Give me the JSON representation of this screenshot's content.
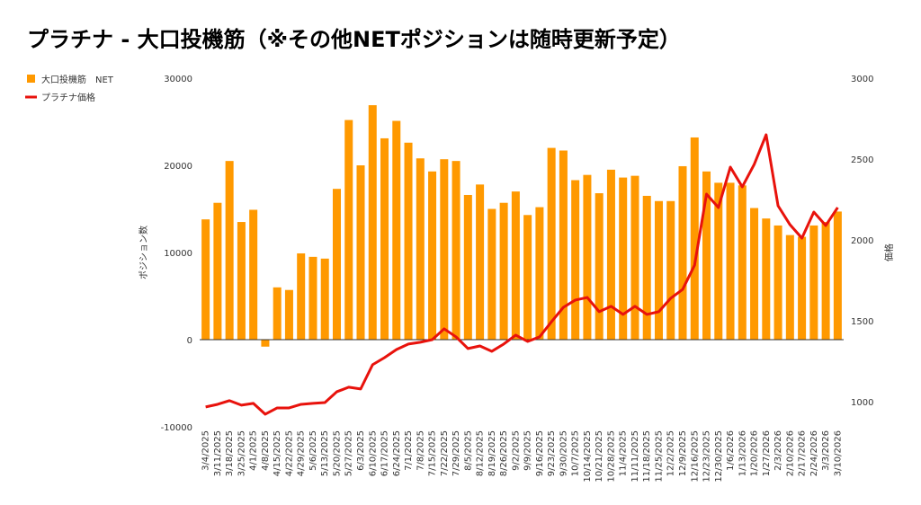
{
  "chart_data": {
    "type": "bar-line",
    "title": "プラチナ - 大口投機筋（※その他NETポジションは随時更新予定）",
    "y_label": "ポジション数",
    "y2_label": "価格",
    "categories": [
      "3/4/2025",
      "3/11/2025",
      "3/18/2025",
      "3/25/2025",
      "4/1/2025",
      "4/8/2025",
      "4/15/2025",
      "4/22/2025",
      "4/29/2025",
      "5/6/2025",
      "5/13/2025",
      "5/20/2025",
      "5/27/2025",
      "6/3/2025",
      "6/10/2025",
      "6/17/2025",
      "6/24/2025",
      "7/1/2025",
      "7/8/2025",
      "7/15/2025",
      "7/22/2025",
      "7/29/2025",
      "8/5/2025",
      "8/12/2025",
      "8/19/2025",
      "8/26/2025",
      "9/2/2025",
      "9/9/2025",
      "9/16/2025",
      "9/23/2025",
      "9/30/2025",
      "10/7/2025",
      "10/14/2025",
      "10/21/2025",
      "10/28/2025",
      "11/4/2025",
      "11/11/2025",
      "11/18/2025",
      "11/25/2025",
      "12/2/2025",
      "12/9/2025",
      "12/16/2025",
      "12/23/2025",
      "12/30/2025",
      "1/6/2026",
      "1/13/2026",
      "1/20/2026",
      "1/27/2026",
      "2/3/2026",
      "2/10/2026",
      "2/17/2026",
      "2/24/2026",
      "3/3/2026",
      "3/10/2026"
    ],
    "series": [
      {
        "name": "大口投機筋　NET",
        "type": "bar",
        "color": "#ff9900",
        "axis": "y",
        "values": [
          13800,
          15700,
          20500,
          13500,
          14900,
          -800,
          6000,
          5700,
          9900,
          9500,
          9300,
          17300,
          25200,
          20000,
          26900,
          23100,
          25100,
          22600,
          20800,
          19300,
          20700,
          20500,
          16600,
          17800,
          15000,
          15700,
          17000,
          14300,
          15200,
          22000,
          21700,
          18300,
          18900,
          16800,
          19500,
          18600,
          18800,
          16500,
          15900,
          15900,
          19900,
          23200,
          19300,
          18000,
          18000,
          17700,
          15100,
          13900,
          13100,
          12000,
          11800,
          13100,
          13500,
          14700
        ]
      },
      {
        "name": "プラチナ価格",
        "type": "line",
        "color": "#e8120c",
        "axis": "y2",
        "values": [
          967,
          983,
          1006,
          978,
          989,
          922,
          961,
          961,
          983,
          989,
          994,
          1061,
          1089,
          1078,
          1228,
          1272,
          1322,
          1356,
          1367,
          1383,
          1450,
          1400,
          1328,
          1344,
          1311,
          1356,
          1411,
          1372,
          1400,
          1494,
          1583,
          1628,
          1644,
          1556,
          1589,
          1539,
          1589,
          1539,
          1556,
          1639,
          1694,
          1844,
          2283,
          2200,
          2450,
          2328,
          2467,
          2650,
          2211,
          2094,
          2011,
          2172,
          2089,
          2200
        ]
      }
    ],
    "ylim": [
      -10000,
      30000
    ],
    "yticks": [
      -10000,
      0,
      10000,
      20000,
      30000
    ],
    "y2lim": [
      844,
      3000
    ],
    "y2ticks": [
      1000,
      1500,
      2000,
      2500,
      3000
    ],
    "legend": "top-left"
  }
}
